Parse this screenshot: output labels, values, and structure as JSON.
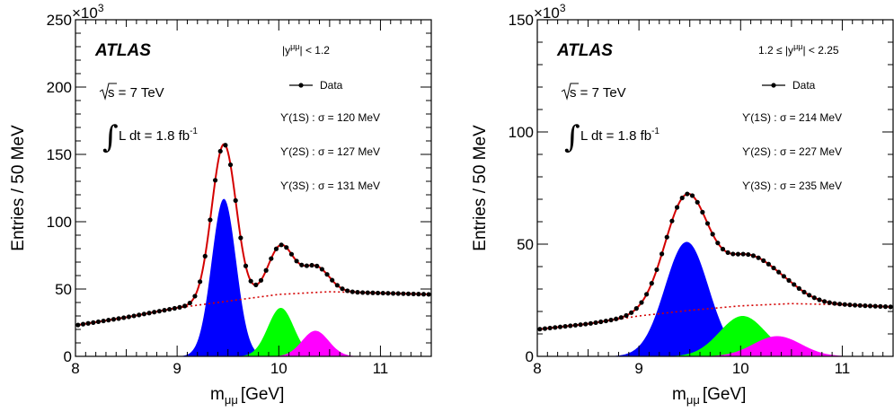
{
  "chart_data": [
    {
      "type": "line",
      "xlabel": "m",
      "xlabel_sub": "μμ",
      "xlabel_unit": "[GeV]",
      "ylabel": "Entries / 50 MeV",
      "y_exponent": "×10",
      "y_exponent_power": "3",
      "xlim": [
        8.0,
        11.5
      ],
      "ylim": [
        0,
        250
      ],
      "xticks": [
        "8",
        "9",
        "10",
        "11"
      ],
      "yticks": [
        "0",
        "50",
        "100",
        "150",
        "200",
        "250"
      ],
      "experiment": "ATLAS",
      "energy_label": "s = 7 TeV",
      "lumi_label": "L dt = 1.8 fb",
      "lumi_power": "-1",
      "rapidity_label": "|y",
      "rapidity_sup": "μμ",
      "rapidity_range": "| < 1.2",
      "legend": {
        "marker_label": "Data",
        "position": "top-right"
      },
      "resolutions": [
        "ϒ(1S) : σ = 120 MeV",
        "ϒ(2S) : σ = 127 MeV",
        "ϒ(3S) : σ = 131 MeV"
      ],
      "background": {
        "x": [
          8.0,
          8.5,
          9.0,
          9.5,
          10.0,
          10.5,
          11.0,
          11.5
        ],
        "y": [
          23,
          29,
          36,
          41,
          46,
          48,
          47,
          46
        ]
      },
      "peaks": [
        {
          "label": "ϒ(1S)",
          "mean": 9.46,
          "sigma": 0.12,
          "height": 117,
          "color": "#0000ff"
        },
        {
          "label": "ϒ(2S)",
          "mean": 10.02,
          "sigma": 0.127,
          "height": 36,
          "color": "#00ff00"
        },
        {
          "label": "ϒ(3S)",
          "mean": 10.36,
          "sigma": 0.131,
          "height": 19,
          "color": "#ff00ff"
        }
      ],
      "colors": {
        "fit": "#d40000",
        "background": "#d40000",
        "data": "#000000"
      }
    },
    {
      "type": "line",
      "xlabel": "m",
      "xlabel_sub": "μμ",
      "xlabel_unit": "[GeV]",
      "ylabel": "Entries / 50 MeV",
      "y_exponent": "×10",
      "y_exponent_power": "3",
      "xlim": [
        8.0,
        11.5
      ],
      "ylim": [
        0,
        150
      ],
      "xticks": [
        "8",
        "9",
        "10",
        "11"
      ],
      "yticks": [
        "0",
        "50",
        "100",
        "150"
      ],
      "experiment": "ATLAS",
      "energy_label": "s = 7 TeV",
      "lumi_label": "L dt = 1.8 fb",
      "lumi_power": "-1",
      "rapidity_label": "1.2 ≤ |y",
      "rapidity_sup": "μμ",
      "rapidity_range": "| < 2.25",
      "legend": {
        "marker_label": "Data",
        "position": "top-right"
      },
      "resolutions": [
        "ϒ(1S) : σ = 214 MeV",
        "ϒ(2S) : σ = 227 MeV",
        "ϒ(3S) : σ = 235 MeV"
      ],
      "background": {
        "x": [
          8.0,
          8.5,
          9.0,
          9.5,
          10.0,
          10.5,
          11.0,
          11.5
        ],
        "y": [
          12,
          14.5,
          18,
          20.5,
          22.5,
          23.5,
          23,
          22
        ]
      },
      "peaks": [
        {
          "label": "ϒ(1S)",
          "mean": 9.47,
          "sigma": 0.214,
          "height": 51,
          "color": "#0000ff"
        },
        {
          "label": "ϒ(2S)",
          "mean": 10.02,
          "sigma": 0.227,
          "height": 18,
          "color": "#00ff00"
        },
        {
          "label": "ϒ(3S)",
          "mean": 10.36,
          "sigma": 0.235,
          "height": 9,
          "color": "#ff00ff"
        }
      ],
      "colors": {
        "fit": "#d40000",
        "background": "#d40000",
        "data": "#000000"
      }
    }
  ]
}
